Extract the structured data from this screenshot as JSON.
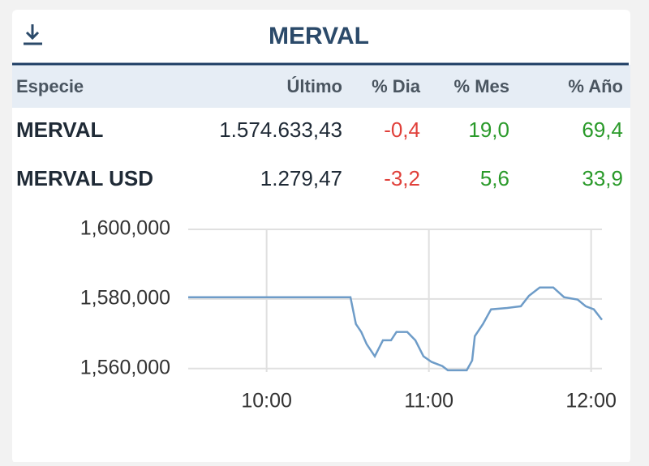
{
  "header": {
    "title": "MERVAL"
  },
  "table": {
    "columns": [
      "Especie",
      "Último",
      "% Dia",
      "% Mes",
      "% Año"
    ],
    "rows": [
      [
        "MERVAL",
        "1.574.633,43",
        "-0,4",
        "19,0",
        "69,4"
      ],
      [
        "MERVAL USD",
        "1.279,47",
        "-3,2",
        "5,6",
        "33,9"
      ]
    ]
  },
  "chart_data": {
    "type": "line",
    "x": [
      "09:31",
      "10:31",
      "10:33",
      "10:35",
      "10:37",
      "10:40",
      "10:43",
      "10:46",
      "10:48",
      "10:52",
      "10:55",
      "10:58",
      "11:01",
      "11:05",
      "11:07",
      "11:14",
      "11:16",
      "11:17",
      "11:20",
      "11:23",
      "11:29",
      "11:34",
      "11:37",
      "11:41",
      "11:46",
      "11:50",
      "11:55",
      "11:58",
      "12:01",
      "12:04"
    ],
    "values": [
      1580500,
      1580500,
      1572800,
      1570500,
      1567000,
      1563500,
      1568100,
      1568100,
      1570500,
      1570500,
      1568100,
      1563500,
      1561900,
      1560700,
      1559500,
      1559500,
      1562300,
      1569300,
      1572800,
      1577000,
      1577400,
      1577900,
      1580900,
      1583300,
      1583300,
      1580500,
      1579800,
      1577900,
      1577000,
      1574000
    ],
    "color": "#6e9cc8",
    "xlim": [
      "09:31",
      "12:04"
    ],
    "xticks": [
      "10:00",
      "11:00",
      "12:00"
    ],
    "ylim": [
      1559000,
      1600000
    ],
    "yticks": [
      {
        "value": 1560000,
        "label": "1,560,000"
      },
      {
        "value": 1580000,
        "label": "1,580,000"
      },
      {
        "value": 1600000,
        "label": "1,600,000"
      }
    ],
    "grid": true
  }
}
